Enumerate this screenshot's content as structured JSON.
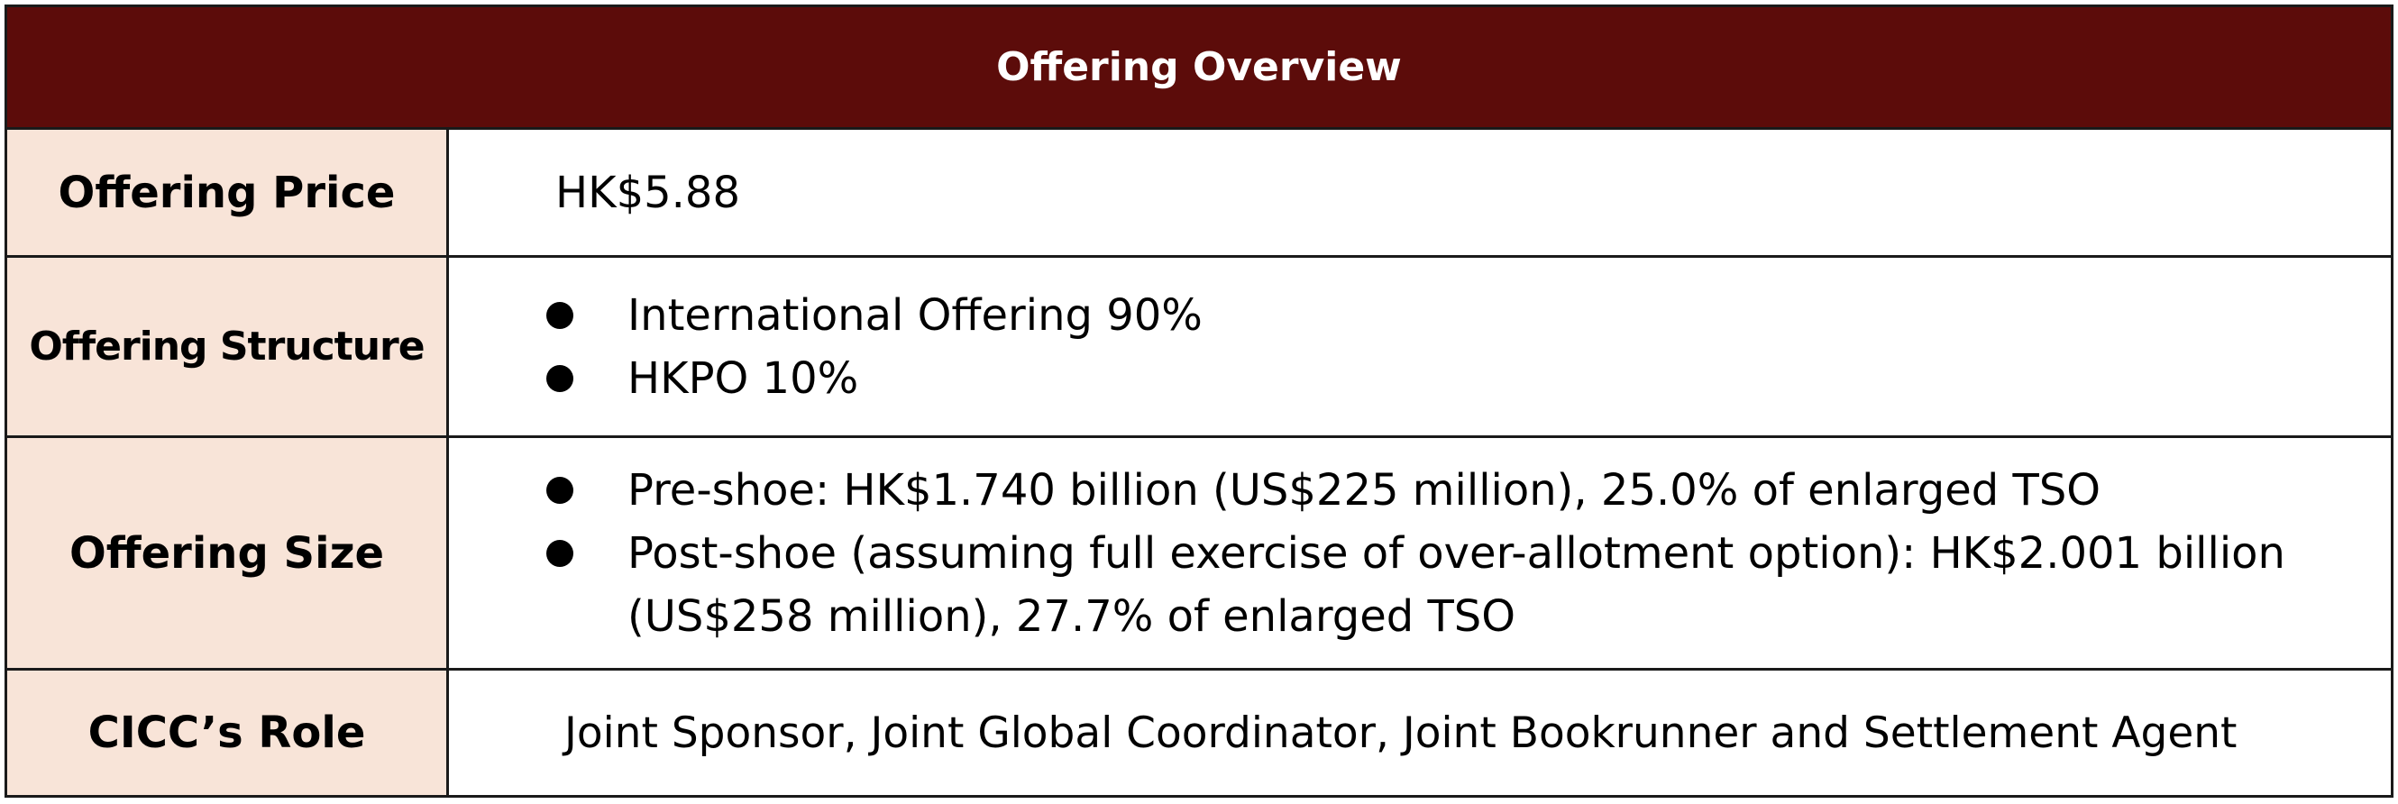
{
  "table": {
    "title": "Offering Overview",
    "offering_price": {
      "label": "Offering Price",
      "value": "HK$5.88"
    },
    "offering_structure": {
      "label": "Offering Structure",
      "items": [
        "International Offering 90%",
        "HKPO 10%"
      ]
    },
    "offering_size": {
      "label": "Offering Size",
      "items": [
        "Pre-shoe: HK$1.740 billion (US$225 million), 25.0% of enlarged TSO",
        "Post-shoe (assuming full exercise of over-allotment option): HK$2.001 billion (US$258 million), 27.7% of enlarged TSO"
      ]
    },
    "cicc_role": {
      "label": "CICC’s Role",
      "value": "Joint Sponsor, Joint Global Coordinator, Joint Bookrunner and Settlement Agent"
    }
  },
  "colors": {
    "header_background": "#5c0c0a",
    "label_background": "#f8e4d8",
    "border": "#1a1a1a"
  }
}
